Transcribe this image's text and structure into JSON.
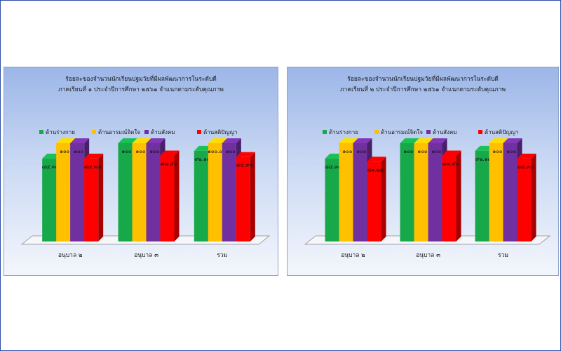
{
  "colors": {
    "green": "#17a84a",
    "yellow": "#ffc000",
    "purple": "#7030a0",
    "red": "#ff0000"
  },
  "chart_data": [
    {
      "type": "bar",
      "title": "ร้อยละของจำนวนนักเรียนปฐมวัยที่มีผลพัฒนาการในระดับดี",
      "subtitle": "ภาคเรียนที่ ๑ ประจำปีการศึกษา ๒๕๖๑ จำแนกตามระดับคุณภาพ",
      "categories": [
        "อนุบาล ๒",
        "อนุบาล ๓",
        "รวม"
      ],
      "legend_position": "top",
      "ylim": [
        0,
        100
      ],
      "series": [
        {
          "name": "ด้านร่างกาย",
          "color": "#17a84a",
          "values": [
            84.38,
            100,
            92.19
          ],
          "labels": [
            "๘๔.๓๘",
            "๑๐๐",
            "๙๒.๑๙"
          ]
        },
        {
          "name": "ด้านอารมณ์จิตใจ",
          "color": "#ffc000",
          "values": [
            100,
            100,
            100
          ],
          "labels": [
            "๑๐๐",
            "๑๐๐",
            "๑๐๐.๐๐"
          ]
        },
        {
          "name": "ด้านสังคม",
          "color": "#7030a0",
          "values": [
            100,
            100,
            100
          ],
          "labels": [
            "๑๐๐",
            "๑๐๐",
            "๑๐๐"
          ]
        },
        {
          "name": "ด้านสติปัญญา",
          "color": "#ff0000",
          "values": [
            84.38,
            87.5,
            85.94
          ],
          "labels": [
            "๘๔.๓๘",
            "๘๗.๕๐",
            "๘๕.๙๔"
          ]
        }
      ]
    },
    {
      "type": "bar",
      "title": "ร้อยละของจำนวนนักเรียนปฐมวัยที่มีผลพัฒนาการในระดับดี",
      "subtitle": "ภาคเรียนที่ ๒ ประจำปีการศึกษา ๒๕๖๑ จำแนกตามระดับคุณภาพ",
      "categories": [
        "อนุบาล ๒",
        "อนุบาล ๓",
        "รวม"
      ],
      "legend_position": "top",
      "ylim": [
        0,
        100
      ],
      "series": [
        {
          "name": "ด้านร่างกาย",
          "color": "#17a84a",
          "values": [
            84.38,
            100,
            92.19
          ],
          "labels": [
            "๘๔.๓๘",
            "๑๐๐",
            "๙๒.๑๙"
          ]
        },
        {
          "name": "ด้านอารมณ์จิตใจ",
          "color": "#ffc000",
          "values": [
            100,
            100,
            100
          ],
          "labels": [
            "๑๐๐",
            "๑๐๐",
            "๑๐๐"
          ]
        },
        {
          "name": "ด้านสังคม",
          "color": "#7030a0",
          "values": [
            100,
            100,
            100
          ],
          "labels": [
            "๑๐๐",
            "๑๐๐",
            "๑๐๐"
          ]
        },
        {
          "name": "ด้านสติปัญญา",
          "color": "#ff0000",
          "values": [
            81.25,
            87.5,
            84.38
          ],
          "labels": [
            "๘๑.๒๕",
            "๘๗.๕๐",
            "๘๔.๓๘"
          ]
        }
      ]
    }
  ]
}
